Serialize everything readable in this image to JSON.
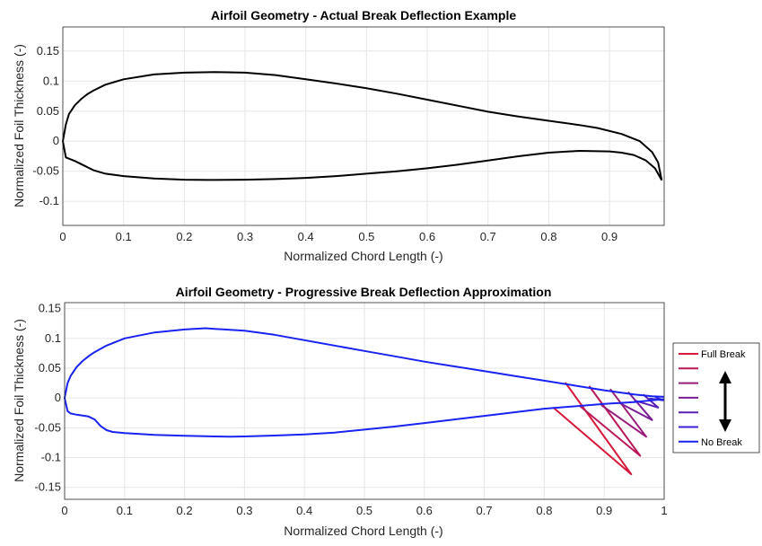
{
  "chart_data": [
    {
      "type": "line",
      "title": "Airfoil Geometry - Actual Break Deflection Example",
      "xlabel": "Normalized Chord Length (-)",
      "ylabel": "Normalized Foil Thickness (-)",
      "xlim": [
        0,
        0.99
      ],
      "ylim": [
        -0.14,
        0.19
      ],
      "xticks": [
        "0",
        "0.1",
        "0.2",
        "0.3",
        "0.4",
        "0.5",
        "0.6",
        "0.7",
        "0.8",
        "0.9"
      ],
      "yticks": [
        "-0.1",
        "-0.05",
        "0",
        "0.05",
        "0.1",
        "0.15"
      ],
      "grid": true,
      "series": [
        {
          "color": "#000000",
          "x": [
            0.986,
            0.975,
            0.96,
            0.94,
            0.92,
            0.9,
            0.85,
            0.8,
            0.75,
            0.7,
            0.65,
            0.6,
            0.55,
            0.5,
            0.45,
            0.4,
            0.35,
            0.3,
            0.25,
            0.24,
            0.2,
            0.15,
            0.1,
            0.07,
            0.05,
            0.03,
            0.02,
            0.01,
            0.005,
            0.0,
            0.005,
            0.01,
            0.02,
            0.03,
            0.04,
            0.05,
            0.06,
            0.07,
            0.1,
            0.15,
            0.2,
            0.25,
            0.3,
            0.35,
            0.4,
            0.45,
            0.5,
            0.55,
            0.6,
            0.65,
            0.7,
            0.75,
            0.8,
            0.85,
            0.88,
            0.92,
            0.95,
            0.97,
            0.98,
            0.986
          ],
          "y": [
            -0.065,
            -0.045,
            -0.032,
            -0.023,
            -0.019,
            -0.017,
            -0.016,
            -0.019,
            -0.025,
            -0.032,
            -0.039,
            -0.045,
            -0.05,
            -0.054,
            -0.058,
            -0.061,
            -0.063,
            -0.064,
            -0.0645,
            -0.0645,
            -0.064,
            -0.062,
            -0.058,
            -0.054,
            -0.048,
            -0.038,
            -0.033,
            -0.029,
            -0.027,
            0.0,
            0.028,
            0.045,
            0.06,
            0.07,
            0.078,
            0.084,
            0.089,
            0.094,
            0.103,
            0.111,
            0.114,
            0.115,
            0.114,
            0.11,
            0.103,
            0.096,
            0.088,
            0.079,
            0.069,
            0.059,
            0.049,
            0.041,
            0.034,
            0.027,
            0.022,
            0.012,
            0.0,
            -0.018,
            -0.035,
            -0.065
          ]
        }
      ]
    },
    {
      "type": "line",
      "title": "Airfoil Geometry - Progressive Break Deflection Approximation",
      "xlabel": "Normalized Chord Length (-)",
      "ylabel": "Normalized Foil Thickness (-)",
      "xlim": [
        0,
        1
      ],
      "ylim": [
        -0.17,
        0.16
      ],
      "xticks": [
        "0",
        "0.1",
        "0.2",
        "0.3",
        "0.4",
        "0.5",
        "0.6",
        "0.7",
        "0.8",
        "0.9",
        "1"
      ],
      "yticks": [
        "-0.15",
        "-0.1",
        "-0.05",
        "0",
        "0.05",
        "0.1",
        "0.15"
      ],
      "grid": true,
      "legend": {
        "placement": "outside-right",
        "entries": [
          "Full Break",
          "",
          "",
          "",
          "",
          "",
          "No Break"
        ]
      },
      "series": [
        {
          "color": "#D6183A",
          "x": [
            0.835,
            0.945,
            0.815
          ],
          "y": [
            0.026,
            -0.128,
            -0.016
          ]
        },
        {
          "color": "#B81A5A",
          "x": [
            0.875,
            0.96,
            0.86
          ],
          "y": [
            0.02,
            -0.097,
            -0.014
          ]
        },
        {
          "color": "#991C78",
          "x": [
            0.91,
            0.97,
            0.895
          ],
          "y": [
            0.015,
            -0.065,
            -0.012
          ]
        },
        {
          "color": "#7A1E96",
          "x": [
            0.94,
            0.98,
            0.925
          ],
          "y": [
            0.01,
            -0.037,
            -0.008
          ]
        },
        {
          "color": "#5A20B4",
          "x": [
            0.965,
            0.99,
            0.95
          ],
          "y": [
            0.006,
            -0.016,
            -0.004
          ]
        },
        {
          "color": "#3B22D2",
          "x": [
            0.985,
            0.998,
            0.975
          ],
          "y": [
            0.002,
            -0.004,
            -0.001
          ]
        },
        {
          "color": "#1A23F0",
          "x": [
            1.0,
            0.98,
            0.95,
            0.9,
            0.85,
            0.8,
            0.75,
            0.7,
            0.65,
            0.6,
            0.55,
            0.5,
            0.45,
            0.4,
            0.35,
            0.3,
            0.28,
            0.25,
            0.2,
            0.15,
            0.1,
            0.08,
            0.07,
            0.06,
            0.05,
            0.04,
            0.02,
            0.01,
            0.005,
            0.0,
            0.005,
            0.01,
            0.02,
            0.03,
            0.04,
            0.05,
            0.07,
            0.1,
            0.15,
            0.2,
            0.235,
            0.25,
            0.3,
            0.35,
            0.4,
            0.45,
            0.5,
            0.55,
            0.6,
            0.65,
            0.7,
            0.75,
            0.8,
            0.85,
            0.9,
            0.95,
            0.98,
            1.0
          ],
          "y": [
            -0.002,
            -0.004,
            -0.007,
            -0.01,
            -0.014,
            -0.018,
            -0.024,
            -0.03,
            -0.036,
            -0.042,
            -0.048,
            -0.053,
            -0.058,
            -0.061,
            -0.063,
            -0.0645,
            -0.065,
            -0.0645,
            -0.0635,
            -0.062,
            -0.059,
            -0.057,
            -0.054,
            -0.047,
            -0.036,
            -0.031,
            -0.028,
            -0.026,
            -0.022,
            0.0,
            0.025,
            0.037,
            0.052,
            0.062,
            0.07,
            0.077,
            0.088,
            0.1,
            0.11,
            0.115,
            0.117,
            0.116,
            0.113,
            0.106,
            0.097,
            0.088,
            0.079,
            0.07,
            0.061,
            0.053,
            0.045,
            0.037,
            0.029,
            0.021,
            0.013,
            0.006,
            0.003,
            0.002
          ]
        }
      ]
    }
  ]
}
